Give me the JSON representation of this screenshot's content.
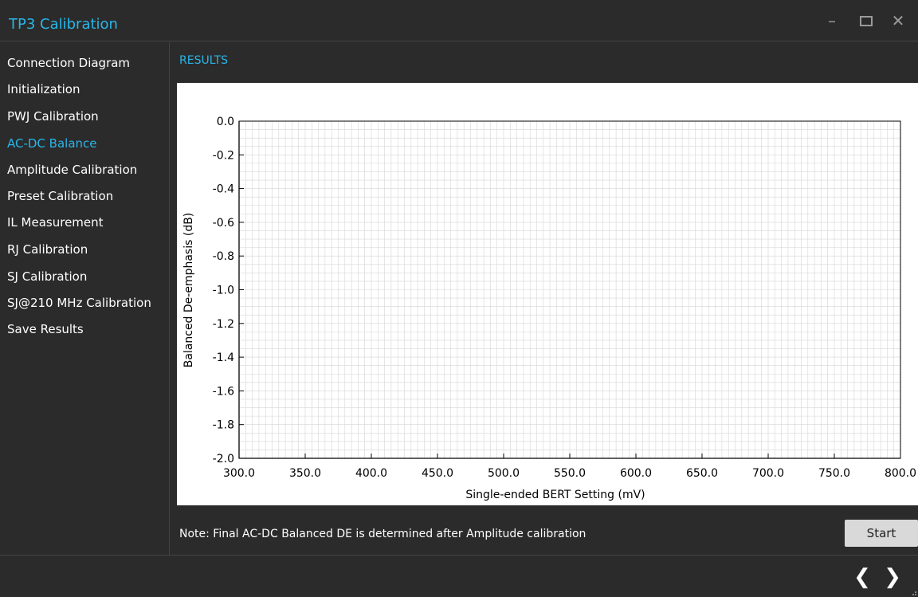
{
  "window": {
    "title": "TP3 Calibration",
    "minimize_glyph": "–",
    "close_glyph": "✕"
  },
  "sidebar": {
    "items": [
      {
        "label": "Connection Diagram",
        "active": false
      },
      {
        "label": "Initialization",
        "active": false
      },
      {
        "label": "PWJ Calibration",
        "active": false
      },
      {
        "label": "AC-DC Balance",
        "active": true
      },
      {
        "label": "Amplitude Calibration",
        "active": false
      },
      {
        "label": "Preset Calibration",
        "active": false
      },
      {
        "label": "IL Measurement",
        "active": false
      },
      {
        "label": "RJ Calibration",
        "active": false
      },
      {
        "label": "SJ Calibration",
        "active": false
      },
      {
        "label": "SJ@210 MHz Calibration",
        "active": false
      },
      {
        "label": "Save Results",
        "active": false
      }
    ]
  },
  "main": {
    "section_label": "RESULTS",
    "note": "Note: Final AC-DC Balanced DE is determined after Amplitude calibration",
    "start_label": "Start"
  },
  "footer": {
    "prev_glyph": "❮",
    "next_glyph": "❯"
  },
  "colors": {
    "accent": "#29b6e8",
    "background": "#2b2b2b",
    "chart_background": "#ffffff",
    "grid": "#d6d6d6",
    "axis": "#000000"
  },
  "chart_data": {
    "type": "line",
    "xlabel": "Single-ended BERT Setting (mV)",
    "ylabel": "Balanced De-emphasis (dB)",
    "xlim": [
      300.0,
      800.0
    ],
    "ylim": [
      -2.0,
      0.0
    ],
    "x_ticks": [
      "300.0",
      "350.0",
      "400.0",
      "450.0",
      "500.0",
      "550.0",
      "600.0",
      "650.0",
      "700.0",
      "750.0",
      "800.0"
    ],
    "y_ticks": [
      "0.0",
      "-0.2",
      "-0.4",
      "-0.6",
      "-0.8",
      "-1.0",
      "-1.2",
      "-1.4",
      "-1.6",
      "-1.8",
      "-2.0"
    ],
    "grid": true,
    "series": []
  }
}
